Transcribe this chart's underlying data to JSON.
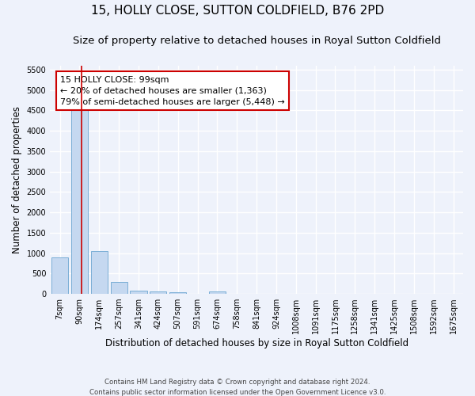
{
  "title": "15, HOLLY CLOSE, SUTTON COLDFIELD, B76 2PD",
  "subtitle": "Size of property relative to detached houses in Royal Sutton Coldfield",
  "xlabel": "Distribution of detached houses by size in Royal Sutton Coldfield",
  "ylabel": "Number of detached properties",
  "footer_line1": "Contains HM Land Registry data © Crown copyright and database right 2024.",
  "footer_line2": "Contains public sector information licensed under the Open Government Licence v3.0.",
  "categories": [
    "7sqm",
    "90sqm",
    "174sqm",
    "257sqm",
    "341sqm",
    "424sqm",
    "507sqm",
    "591sqm",
    "674sqm",
    "758sqm",
    "841sqm",
    "924sqm",
    "1008sqm",
    "1091sqm",
    "1175sqm",
    "1258sqm",
    "1341sqm",
    "1425sqm",
    "1508sqm",
    "1592sqm",
    "1675sqm"
  ],
  "values": [
    900,
    4550,
    1060,
    300,
    80,
    60,
    50,
    0,
    60,
    0,
    0,
    0,
    0,
    0,
    0,
    0,
    0,
    0,
    0,
    0,
    0
  ],
  "bar_color": "#c5d8f0",
  "bar_edge_color": "#7aaed6",
  "property_line_x": 1.12,
  "property_line_color": "#cc0000",
  "annotation_text": "15 HOLLY CLOSE: 99sqm\n← 20% of detached houses are smaller (1,363)\n79% of semi-detached houses are larger (5,448) →",
  "annotation_box_color": "#cc0000",
  "ylim": [
    0,
    5600
  ],
  "yticks": [
    0,
    500,
    1000,
    1500,
    2000,
    2500,
    3000,
    3500,
    4000,
    4500,
    5000,
    5500
  ],
  "bg_color": "#eef2fb",
  "grid_color": "#ffffff",
  "title_fontsize": 11,
  "subtitle_fontsize": 9.5,
  "xlabel_fontsize": 8.5,
  "ylabel_fontsize": 8.5,
  "tick_fontsize": 7,
  "annotation_fontsize": 8
}
